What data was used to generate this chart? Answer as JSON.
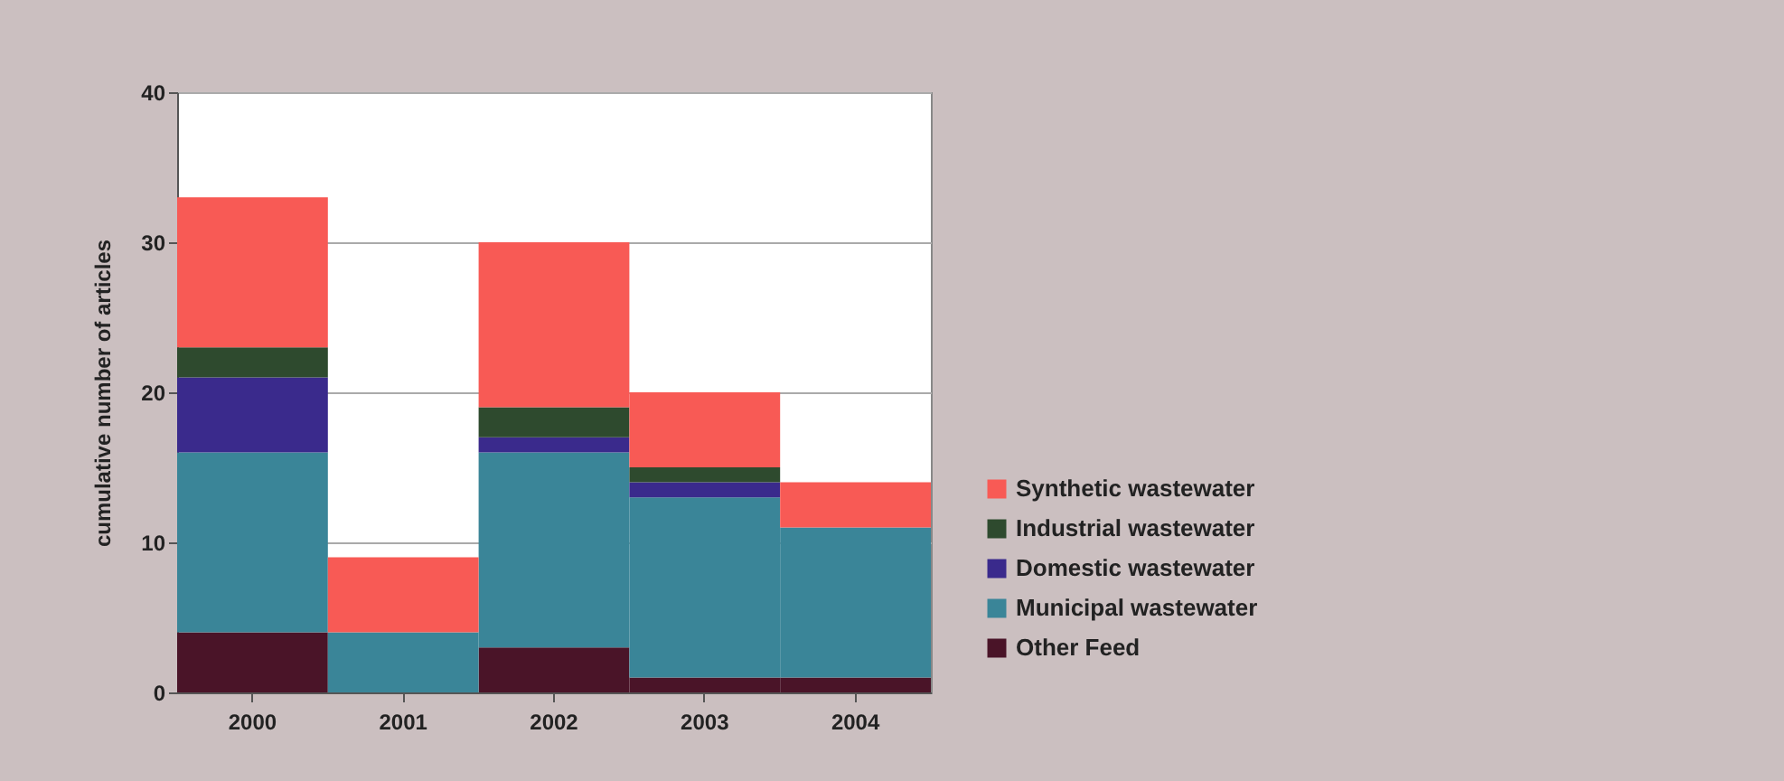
{
  "chart_data": {
    "type": "bar",
    "stacked": true,
    "ylabel": "cumulative number of articles",
    "categories": [
      "2000",
      "2001",
      "2002",
      "2003",
      "2004"
    ],
    "series": [
      {
        "name": "Other Feed",
        "color": "#4a1428",
        "values": [
          4,
          0,
          3,
          1,
          1
        ]
      },
      {
        "name": "Municipal wastewater",
        "color": "#3a8598",
        "values": [
          12,
          4,
          13,
          12,
          10
        ]
      },
      {
        "name": "Domestic wastewater",
        "color": "#3a2a8c",
        "values": [
          5,
          0,
          1,
          1,
          0
        ]
      },
      {
        "name": "Industrial wastewater",
        "color": "#2e4a2e",
        "values": [
          2,
          0,
          2,
          1,
          0
        ]
      },
      {
        "name": "Synthetic wastewater",
        "color": "#f85a55",
        "values": [
          10,
          5,
          11,
          5,
          3
        ]
      }
    ],
    "ylim": [
      0,
      40
    ],
    "yticks": [
      0,
      10,
      20,
      30,
      40
    ],
    "grid": "y",
    "legend": "right"
  }
}
